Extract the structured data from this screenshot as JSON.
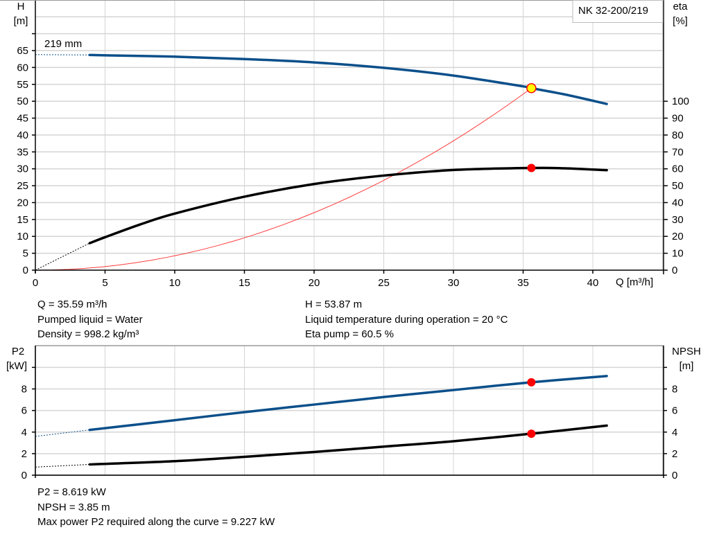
{
  "colors": {
    "head": "#0b4f8a",
    "eta": "#000000",
    "system": "#ff3b3b",
    "p2": "#0b4f8a",
    "npsh": "#000000",
    "duty_point": "#ff0000",
    "duty_point_head": "#ffff00",
    "grid": "#d4d4d4"
  },
  "chart_data": [
    {
      "type": "line",
      "legend_box": "NK 32-200/219",
      "curve_label": "219 mm",
      "xlabel": "Q [m³/h]",
      "ylabel": "H",
      "ylabel_unit": "[m]",
      "y2label": "eta",
      "y2label_unit": "[%]",
      "xlim": [
        0,
        45
      ],
      "ylim": [
        0,
        80
      ],
      "y2lim": [
        0,
        160
      ],
      "x_ticks": [
        0,
        5,
        10,
        15,
        20,
        25,
        30,
        35,
        40
      ],
      "y_ticks": [
        0,
        5,
        10,
        15,
        20,
        25,
        30,
        35,
        40,
        45,
        50,
        55,
        60,
        65
      ],
      "y2_ticks": [
        0,
        10,
        20,
        30,
        40,
        50,
        60,
        70,
        80,
        90,
        100
      ],
      "grid": true,
      "series": [
        {
          "key": "head",
          "axis": "left",
          "extrapolated": [
            [
              0,
              63.8
            ],
            [
              3.9,
              63.7
            ]
          ],
          "x": [
            3.9,
            5,
            10,
            15,
            20,
            25,
            30,
            35,
            35.59,
            38,
            41
          ],
          "y": [
            63.7,
            63.6,
            63.2,
            62.5,
            61.5,
            59.9,
            57.6,
            54.4,
            53.87,
            52.0,
            49.2
          ]
        },
        {
          "key": "eta",
          "axis": "right",
          "extrapolated": [
            [
              0,
              0
            ],
            [
              3.9,
              16
            ]
          ],
          "x": [
            3.9,
            5,
            7.5,
            10,
            15,
            20,
            25,
            30,
            35.59,
            38,
            41
          ],
          "y": [
            16,
            19.5,
            27,
            33.5,
            43.5,
            51,
            56,
            59.3,
            60.5,
            60.3,
            59.2
          ]
        },
        {
          "key": "system",
          "axis": "left",
          "quadratic_through": [
            35.59,
            53.87
          ]
        }
      ],
      "duty_point": {
        "q": 35.59,
        "h": 53.87,
        "eta": 60.5
      }
    },
    {
      "type": "line",
      "xlim": [
        0,
        45
      ],
      "ylim": [
        0,
        12
      ],
      "ylabel": "P2",
      "ylabel_unit": "[kW]",
      "y2label": "NPSH",
      "y2label_unit": "[m]",
      "y_ticks": [
        0,
        2,
        4,
        6,
        8
      ],
      "y2_ticks": [
        0,
        2,
        4,
        6,
        8
      ],
      "grid": true,
      "series": [
        {
          "key": "p2",
          "axis": "left",
          "extrapolated": [
            [
              0,
              3.6
            ],
            [
              3.9,
              4.2
            ]
          ],
          "x": [
            3.9,
            10,
            15,
            20,
            25,
            30,
            35.59,
            41
          ],
          "y": [
            4.2,
            5.1,
            5.85,
            6.55,
            7.25,
            7.9,
            8.619,
            9.2
          ]
        },
        {
          "key": "npsh",
          "axis": "right",
          "extrapolated": [
            [
              0,
              0.75
            ],
            [
              3.9,
              1.0
            ]
          ],
          "x": [
            3.9,
            10,
            15,
            20,
            25,
            30,
            35.59,
            41
          ],
          "y": [
            1.0,
            1.3,
            1.7,
            2.15,
            2.65,
            3.15,
            3.85,
            4.6
          ]
        }
      ],
      "duty_point": {
        "q": 35.59,
        "p2": 8.619,
        "npsh": 3.85
      }
    }
  ],
  "info_top": {
    "left": [
      "Q = 35.59 m³/h",
      "Pumped liquid = Water",
      "Density = 998.2 kg/m³"
    ],
    "right": [
      "H = 53.87 m",
      "Liquid temperature during operation = 20 °C",
      "Eta pump = 60.5 %"
    ]
  },
  "info_bottom": [
    "P2 = 8.619 kW",
    "NPSH = 3.85 m",
    "Max power P2 required along the curve = 9.227 kW"
  ]
}
